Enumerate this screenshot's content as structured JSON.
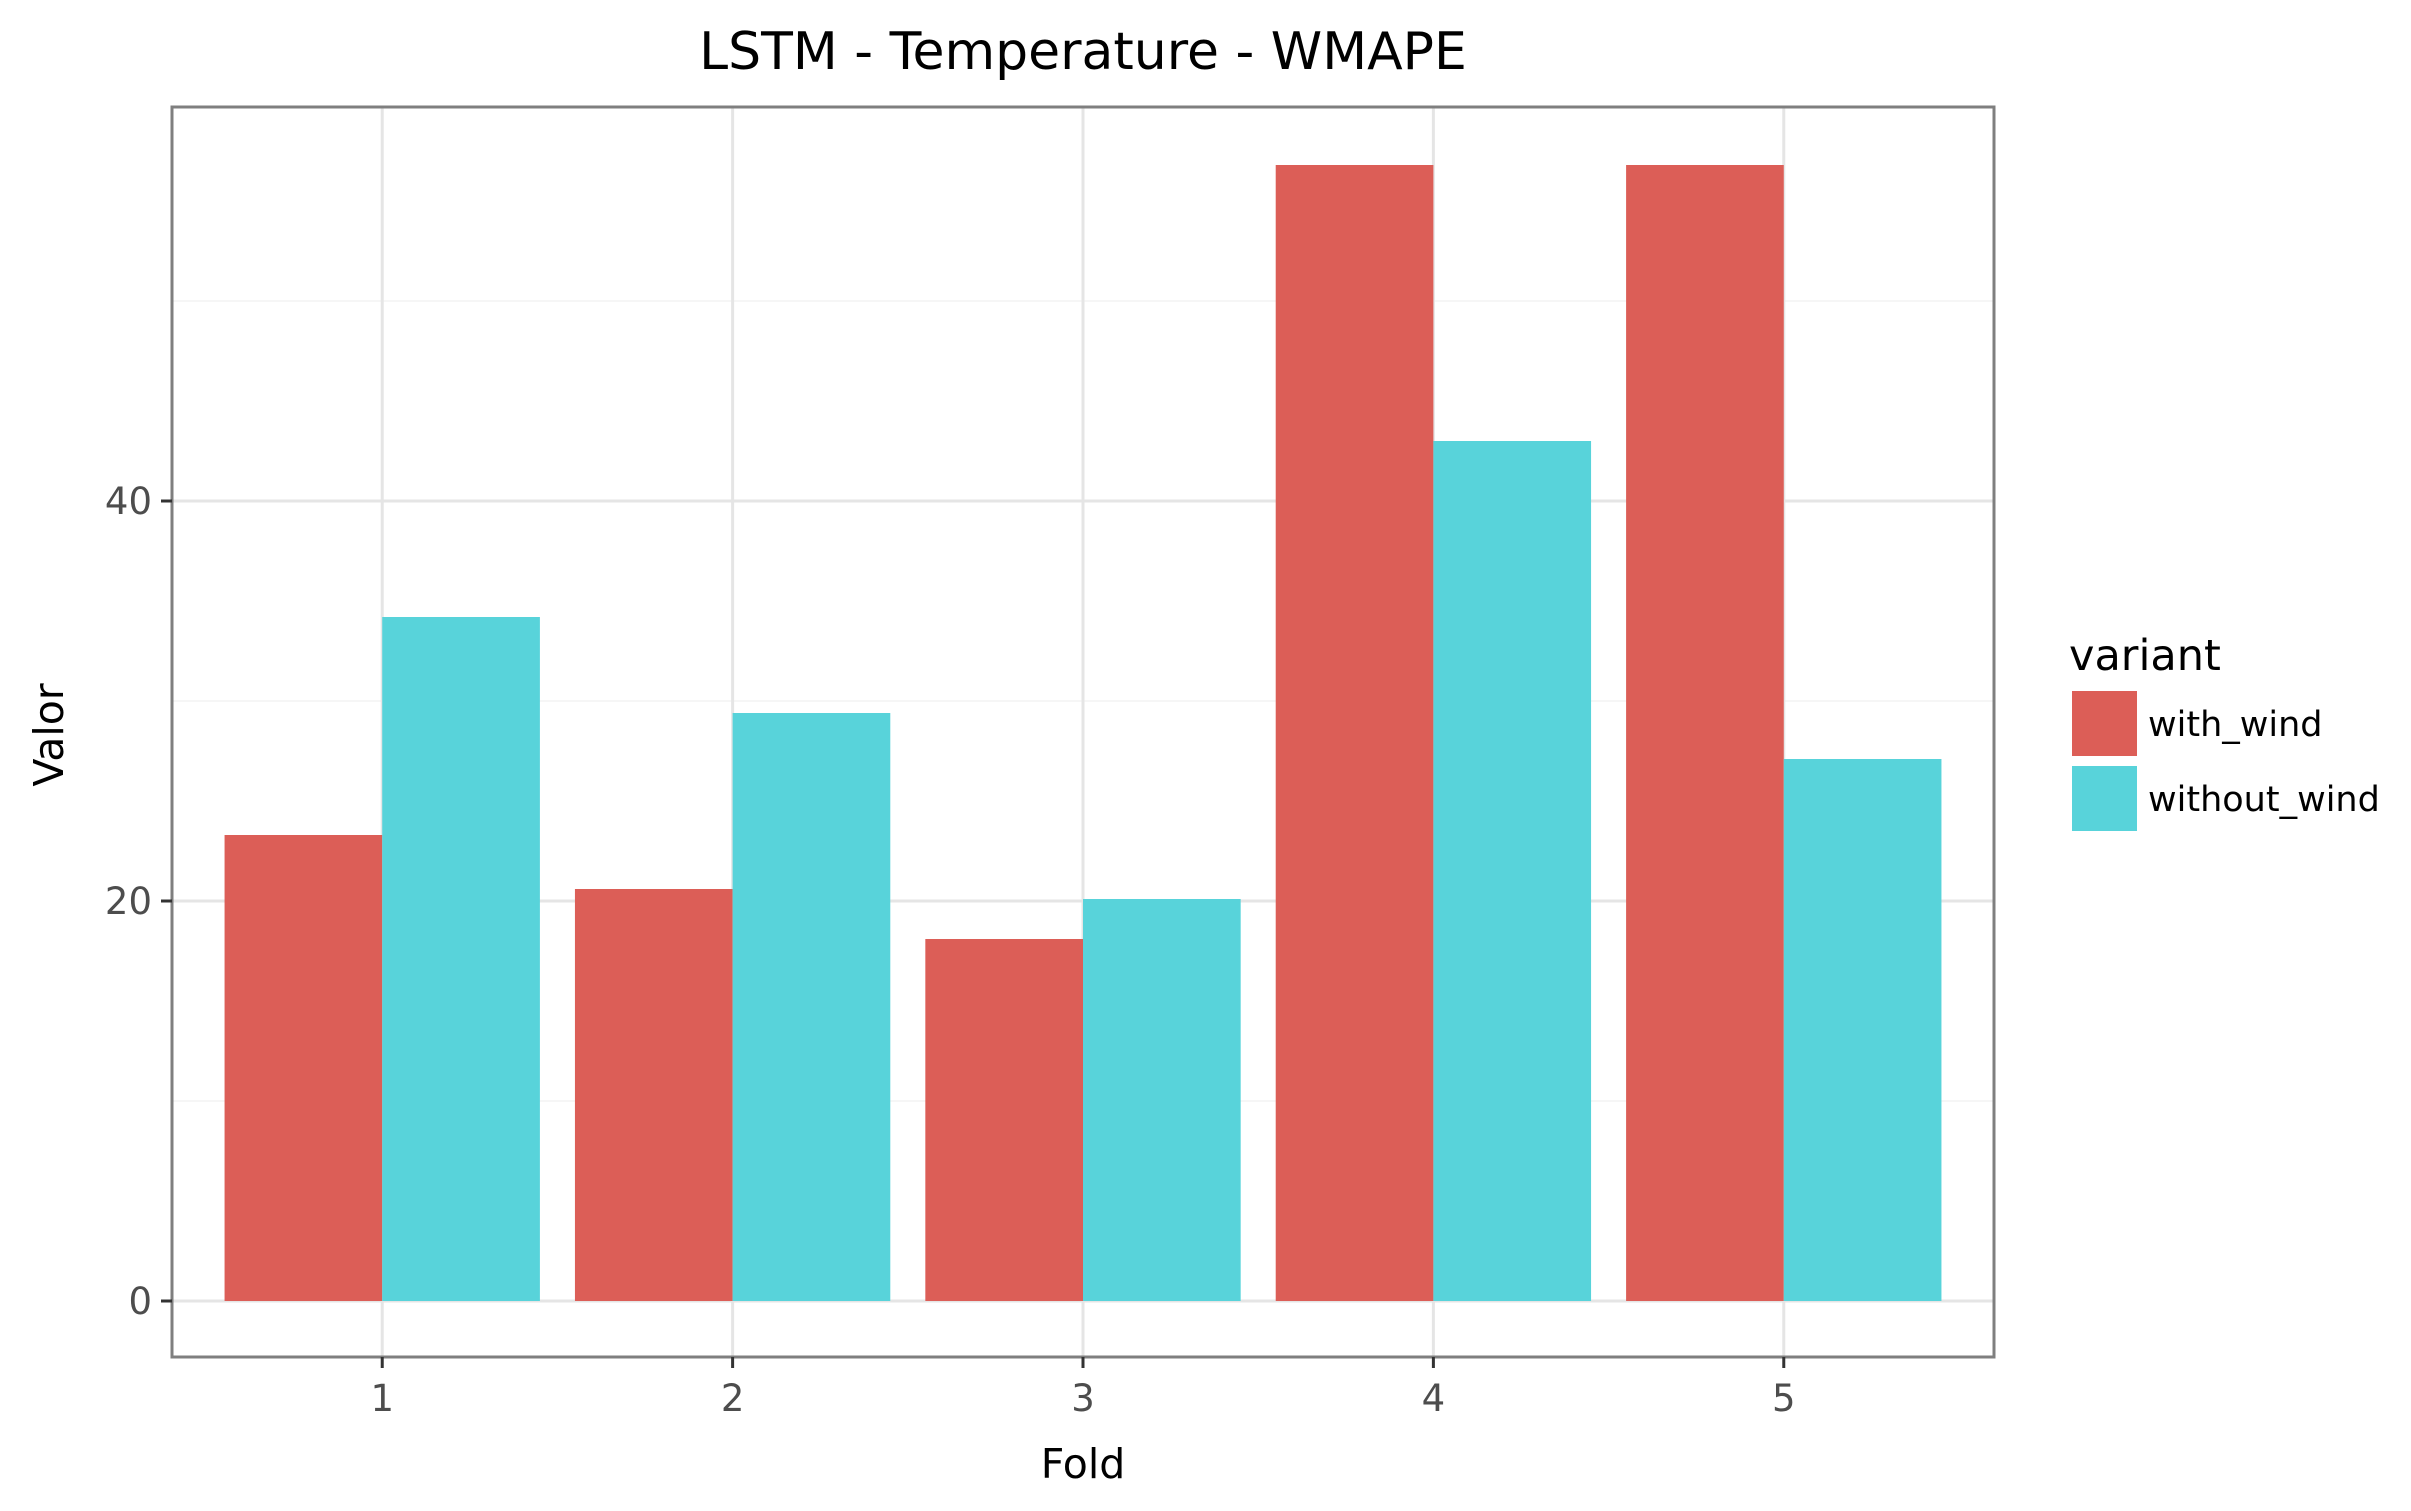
{
  "chart_data": {
    "type": "bar",
    "title": "LSTM - Temperature - WMAPE",
    "xlabel": "Fold",
    "ylabel": "Valor",
    "categories": [
      "1",
      "2",
      "3",
      "4",
      "5"
    ],
    "series": [
      {
        "name": "with_wind",
        "color": "#dc5e57",
        "values": [
          23.3,
          20.6,
          18.1,
          56.8,
          56.8
        ]
      },
      {
        "name": "without_wind",
        "color": "#58d3da",
        "values": [
          34.2,
          29.4,
          20.1,
          43.0,
          27.1
        ]
      }
    ],
    "ylim": [
      -2.8,
      59.7
    ],
    "yticks": [
      0,
      20,
      40
    ],
    "grid": true,
    "legend": {
      "title": "variant",
      "position": "right"
    }
  }
}
